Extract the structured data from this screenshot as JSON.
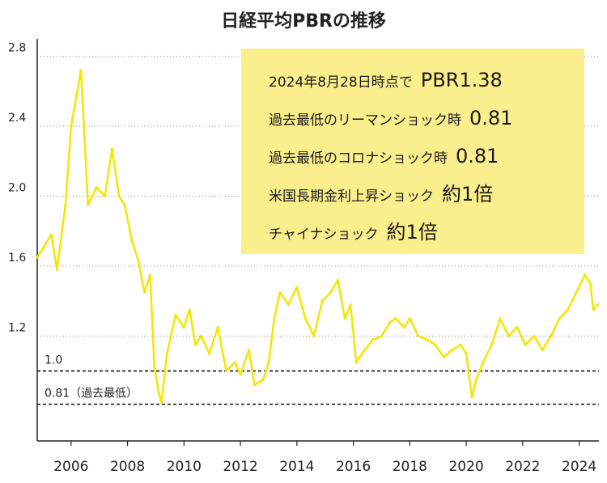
{
  "chart_data": {
    "type": "line",
    "title": "日経平均PBRの推移",
    "xlabel": "",
    "ylabel": "",
    "xlim": [
      2004.8,
      2024.7
    ],
    "ylim": [
      0.6,
      2.9
    ],
    "yticks": [
      "1.2",
      "1.6",
      "2.0",
      "2.4",
      "2.8"
    ],
    "xticks": [
      "2006",
      "2008",
      "2010",
      "2012",
      "2014",
      "2016",
      "2018",
      "2020",
      "2022",
      "2024"
    ],
    "grid": "horizontal dotted",
    "line_color": "#f5e600",
    "series": [
      {
        "x": [
          2004.8,
          2005.0,
          2005.3,
          2005.5,
          2005.8,
          2006.0,
          2006.2,
          2006.35,
          2006.6,
          2006.9,
          2007.2,
          2007.45,
          2007.7,
          2007.9,
          2008.15,
          2008.4,
          2008.6,
          2008.8,
          2008.95,
          2009.1,
          2009.2,
          2009.4,
          2009.7,
          2010.0,
          2010.2,
          2010.4,
          2010.6,
          2010.9,
          2011.2,
          2011.5,
          2011.8,
          2012.0,
          2012.3,
          2012.5,
          2012.8,
          2013.0,
          2013.2,
          2013.4,
          2013.7,
          2014.0,
          2014.3,
          2014.6,
          2014.9,
          2015.2,
          2015.45,
          2015.7,
          2015.9,
          2016.1,
          2016.4,
          2016.7,
          2017.0,
          2017.3,
          2017.5,
          2017.8,
          2018.0,
          2018.3,
          2018.6,
          2018.9,
          2019.2,
          2019.5,
          2019.8,
          2020.0,
          2020.2,
          2020.35,
          2020.6,
          2020.9,
          2021.2,
          2021.5,
          2021.8,
          2022.1,
          2022.4,
          2022.7,
          2023.0,
          2023.3,
          2023.6,
          2023.9,
          2024.2,
          2024.4,
          2024.5,
          2024.65
        ],
        "values": [
          1.65,
          1.7,
          1.78,
          1.58,
          1.95,
          2.4,
          2.58,
          2.72,
          1.95,
          2.05,
          2.0,
          2.27,
          2.0,
          1.95,
          1.75,
          1.62,
          1.45,
          1.55,
          1.02,
          0.88,
          0.82,
          1.1,
          1.32,
          1.25,
          1.35,
          1.15,
          1.2,
          1.1,
          1.25,
          1.0,
          1.05,
          0.98,
          1.12,
          0.92,
          0.95,
          1.05,
          1.3,
          1.45,
          1.38,
          1.48,
          1.3,
          1.2,
          1.4,
          1.45,
          1.52,
          1.3,
          1.38,
          1.05,
          1.12,
          1.18,
          1.2,
          1.28,
          1.3,
          1.25,
          1.3,
          1.2,
          1.18,
          1.15,
          1.08,
          1.12,
          1.15,
          1.1,
          0.85,
          0.95,
          1.05,
          1.15,
          1.3,
          1.2,
          1.25,
          1.15,
          1.2,
          1.12,
          1.2,
          1.3,
          1.35,
          1.45,
          1.55,
          1.5,
          1.35,
          1.38
        ]
      }
    ],
    "reference_lines": [
      {
        "y": 1.0,
        "label": "1.0"
      },
      {
        "y": 0.81,
        "label": "0.81（過去最低）"
      }
    ]
  },
  "notes": [
    {
      "text": "2024年8月28日時点で",
      "value": "PBR1.38"
    },
    {
      "text": "過去最低のリーマンショック時",
      "value": "0.81"
    },
    {
      "text": "過去最低のコロナショック時",
      "value": "0.81"
    },
    {
      "text": "米国長期金利上昇ショック",
      "value": "約1倍"
    },
    {
      "text": "チャイナショック",
      "value": "約1倍"
    }
  ]
}
